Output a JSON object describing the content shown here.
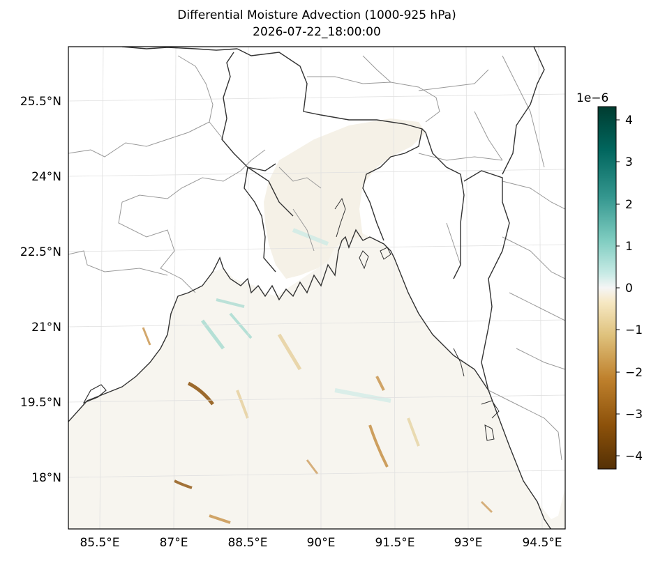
{
  "title": "Differential Moisture Advection (1000-925 hPa)",
  "subtitle": "2026-07-22_18:00:00",
  "lat_ticks": [
    "25.5°N",
    "24°N",
    "22.5°N",
    "21°N",
    "19.5°N",
    "18°N"
  ],
  "lon_ticks": [
    "85.5°E",
    "87°E",
    "88.5°E",
    "90°E",
    "91.5°E",
    "93°E",
    "94.5°E"
  ],
  "colorbar": {
    "exponent_label": "1e−6",
    "ticks": [
      "4",
      "3",
      "2",
      "1",
      "0",
      "−1",
      "−2",
      "−3",
      "−4"
    ],
    "colormap": "BrBG",
    "range": [
      -4.3,
      4.3
    ]
  },
  "colors": {
    "land": "#ffffff",
    "coastline": "#333333",
    "admin_border": "#999999",
    "gridline": "#e0e0e0"
  }
}
